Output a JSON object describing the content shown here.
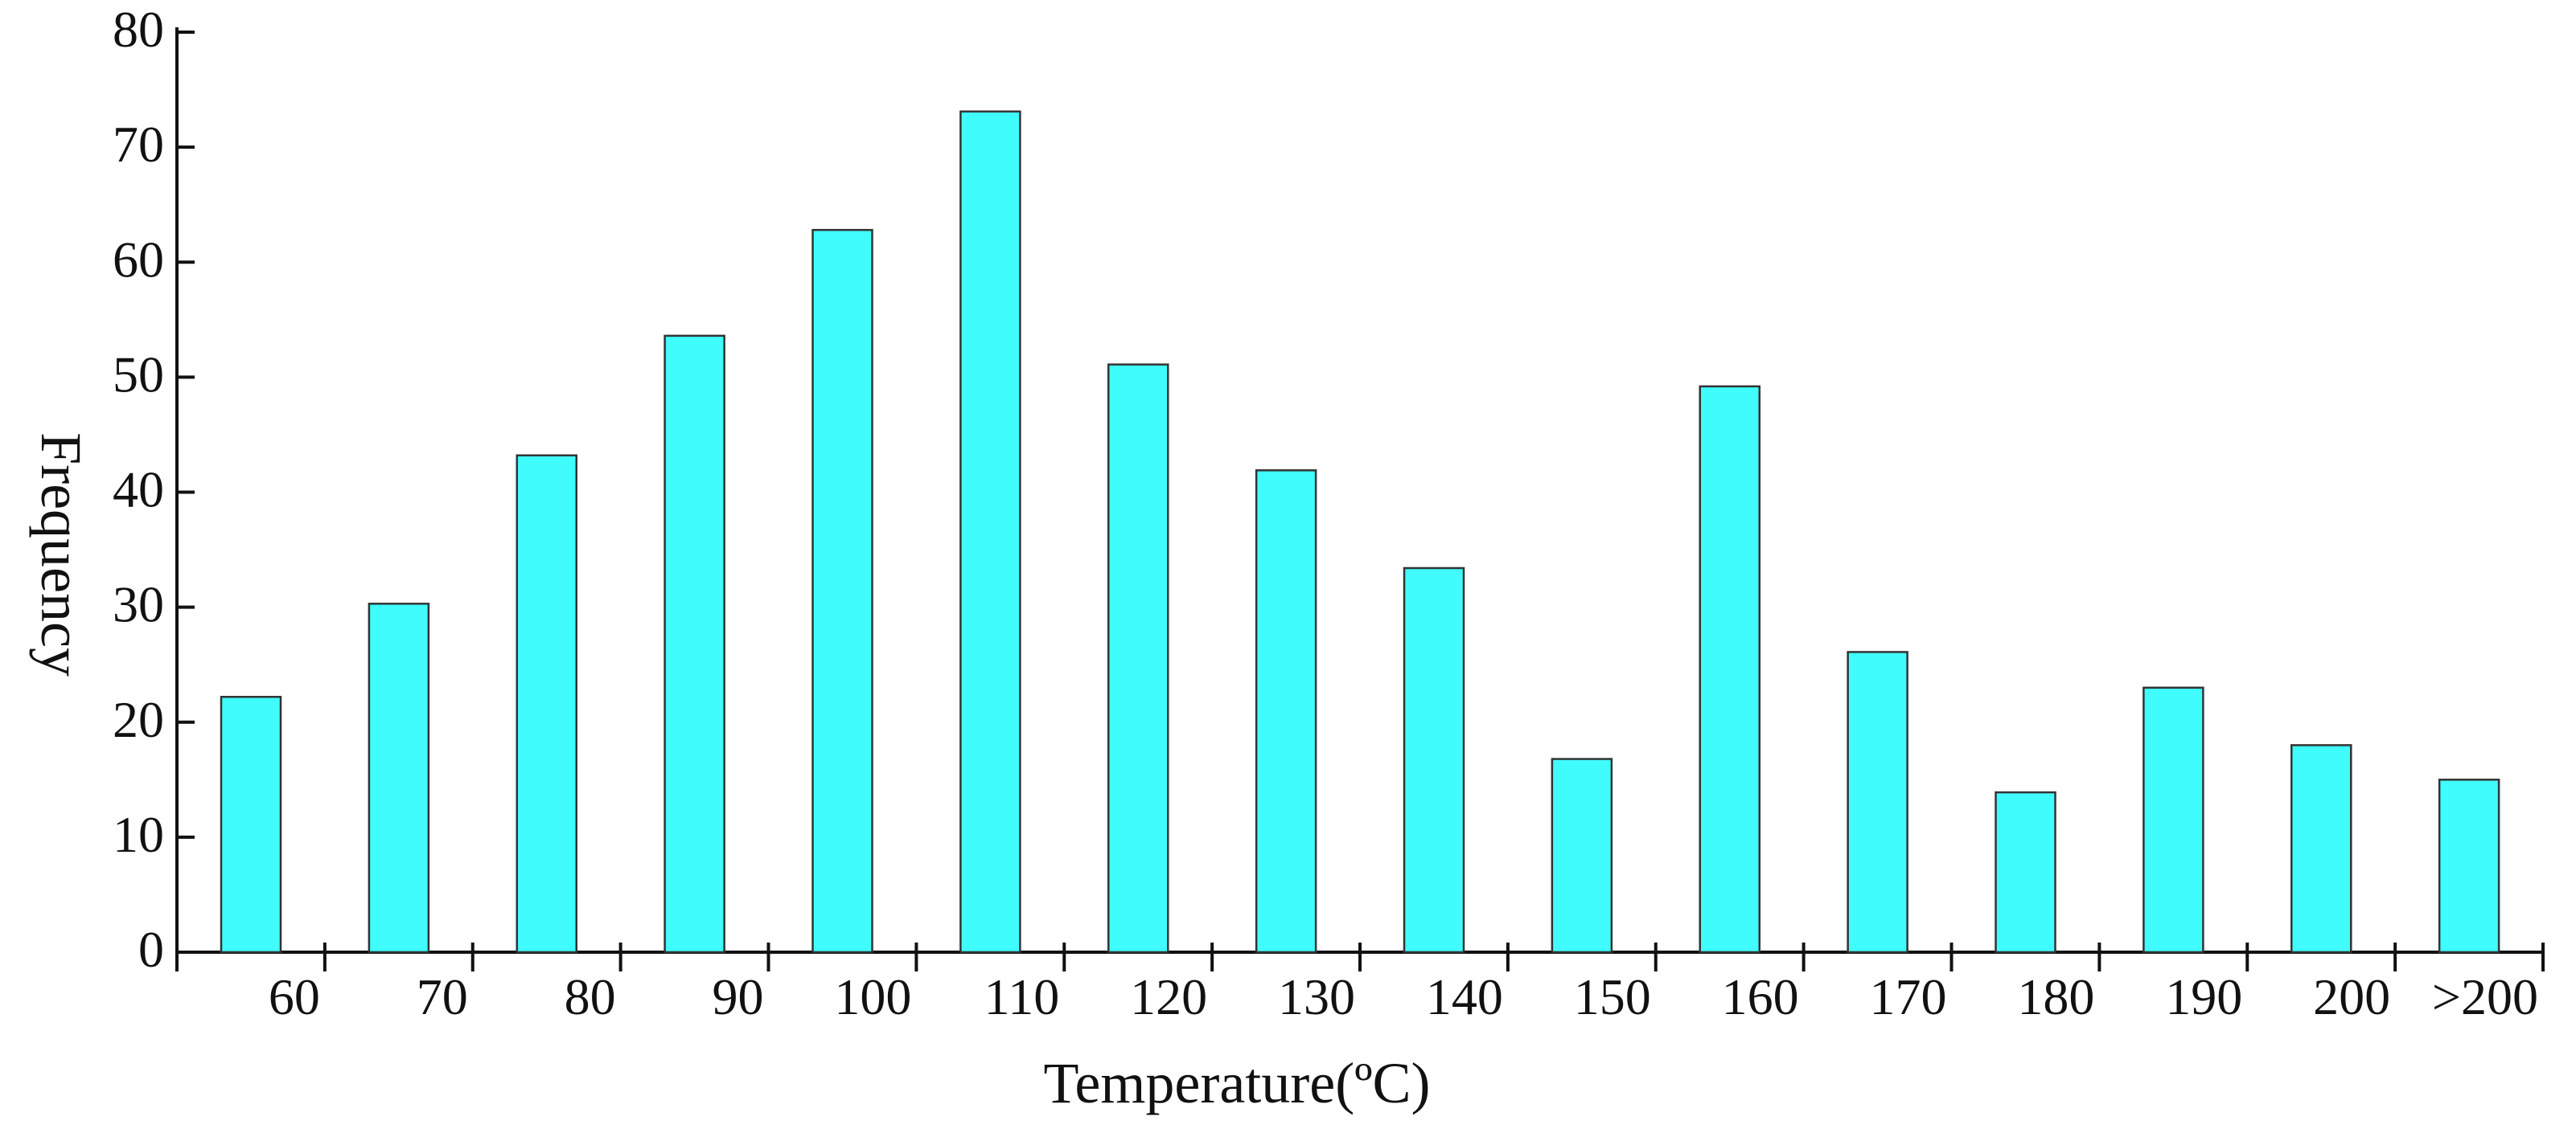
{
  "chart_data": {
    "type": "bar",
    "title": "",
    "xlabel": "Temperature(ºC)",
    "ylabel": "Frequency",
    "categories": [
      "60",
      "70",
      "80",
      "90",
      "100",
      "110",
      "120",
      "130",
      "140",
      "150",
      "160",
      "170",
      "180",
      "190",
      "200",
      ">200"
    ],
    "values": [
      22.2,
      30.3,
      43.2,
      53.6,
      62.8,
      73.1,
      51.1,
      41.9,
      33.4,
      16.8,
      49.2,
      26.1,
      13.9,
      23.0,
      18.0,
      15.0
    ],
    "ylim": [
      0,
      80
    ],
    "yticks": [
      "0",
      "10",
      "20",
      "30",
      "40",
      "50",
      "60",
      "70",
      "80"
    ],
    "grid": false,
    "legend": "none",
    "colors": {
      "bar_fill": "#40fcfc",
      "bar_stroke": "#333333",
      "axis": "#111111"
    }
  }
}
